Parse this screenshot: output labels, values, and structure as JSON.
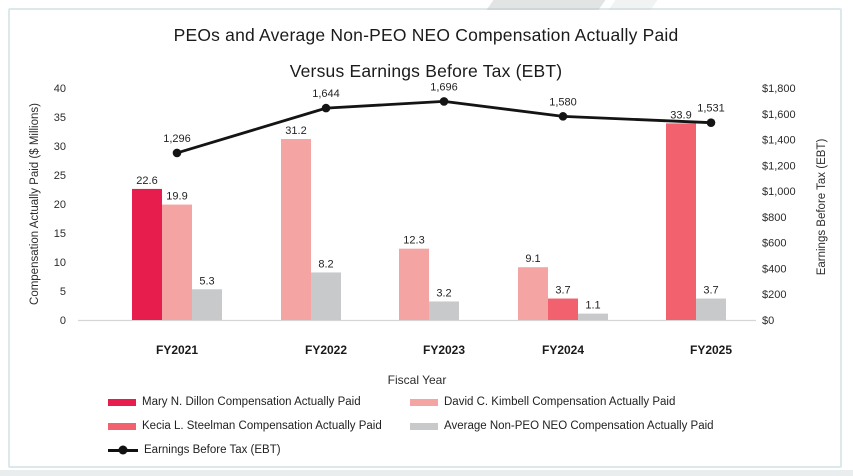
{
  "chart_data": {
    "type": "bar+line",
    "title_line1": "PEOs and Average Non-PEO NEO Compensation Actually Paid",
    "title_line2": "Versus Earnings Before Tax (EBT)",
    "categories": [
      "FY2021",
      "FY2022",
      "FY2023",
      "FY2024",
      "FY2025"
    ],
    "xlabel": "Fiscal Year",
    "left_axis": {
      "label": "Compensation Actually Paid ($ Millions)",
      "min": 0,
      "max": 40,
      "step": 5,
      "ticks": [
        "0",
        "5",
        "10",
        "15",
        "20",
        "25",
        "30",
        "35",
        "40"
      ]
    },
    "right_axis": {
      "label": "Earnings Before Tax (EBT)",
      "min": 0,
      "max": 1800,
      "step": 200,
      "ticks": [
        "$0",
        "$200",
        "$400",
        "$600",
        "$800",
        "$1,000",
        "$1,200",
        "$1,400",
        "$1,600",
        "$1,800"
      ]
    },
    "series": [
      {
        "id": "dillon",
        "name": "Mary N. Dillon Compensation Actually Paid",
        "color": "#E71D4E",
        "values": [
          22.6,
          null,
          null,
          null,
          null
        ]
      },
      {
        "id": "kimbell",
        "name": "David C. Kimbell Compensation Actually Paid",
        "color": "#F4A5A3",
        "values": [
          19.9,
          31.2,
          12.3,
          9.1,
          null
        ]
      },
      {
        "id": "steelman",
        "name": "Kecia L. Steelman Compensation Actually Paid",
        "color": "#F1626E",
        "values": [
          null,
          null,
          null,
          3.7,
          33.9
        ]
      },
      {
        "id": "avg-neo",
        "name": "Average Non-PEO NEO Compensation Actually Paid",
        "color": "#C7C9CB",
        "values": [
          5.3,
          8.2,
          3.2,
          1.1,
          3.7
        ]
      }
    ],
    "line_series": {
      "id": "ebt",
      "name": "Earnings Before Tax (EBT)",
      "color": "#141414",
      "values": [
        1296,
        1644,
        1696,
        1580,
        1531
      ],
      "labels": [
        "1,296",
        "1,644",
        "1,696",
        "1,580",
        "1,531"
      ]
    },
    "gridlines": false,
    "legend_position": "bottom"
  }
}
